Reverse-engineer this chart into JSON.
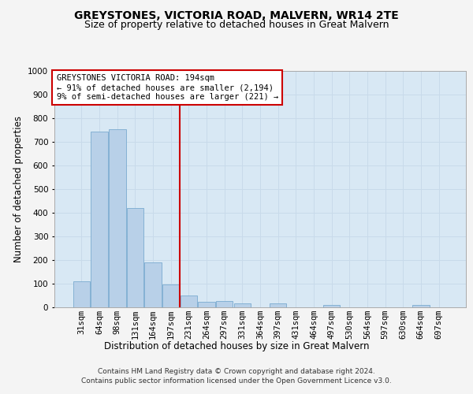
{
  "title": "GREYSTONES, VICTORIA ROAD, MALVERN, WR14 2TE",
  "subtitle": "Size of property relative to detached houses in Great Malvern",
  "xlabel": "Distribution of detached houses by size in Great Malvern",
  "ylabel": "Number of detached properties",
  "categories": [
    "31sqm",
    "64sqm",
    "98sqm",
    "131sqm",
    "164sqm",
    "197sqm",
    "231sqm",
    "264sqm",
    "297sqm",
    "331sqm",
    "364sqm",
    "397sqm",
    "431sqm",
    "464sqm",
    "497sqm",
    "530sqm",
    "564sqm",
    "597sqm",
    "630sqm",
    "664sqm",
    "697sqm"
  ],
  "values": [
    110,
    745,
    755,
    420,
    190,
    97,
    50,
    25,
    27,
    18,
    0,
    18,
    0,
    0,
    10,
    0,
    0,
    0,
    0,
    10,
    0
  ],
  "bar_color": "#b8d0e8",
  "bar_edge_color": "#7aaad0",
  "property_line_x": 5.5,
  "property_label_line1": "GREYSTONES VICTORIA ROAD: 194sqm",
  "property_label_line2": "← 91% of detached houses are smaller (2,194)",
  "property_label_line3": "9% of semi-detached houses are larger (221) →",
  "annotation_box_color": "#ffffff",
  "annotation_box_edge": "#cc0000",
  "vline_color": "#cc0000",
  "ylim": [
    0,
    1000
  ],
  "yticks": [
    0,
    100,
    200,
    300,
    400,
    500,
    600,
    700,
    800,
    900,
    1000
  ],
  "grid_color": "#c8daea",
  "background_color": "#d8e8f4",
  "fig_background": "#f4f4f4",
  "footer_line1": "Contains HM Land Registry data © Crown copyright and database right 2024.",
  "footer_line2": "Contains public sector information licensed under the Open Government Licence v3.0.",
  "title_fontsize": 10,
  "subtitle_fontsize": 9,
  "axis_label_fontsize": 8.5,
  "tick_fontsize": 7.5,
  "annotation_fontsize": 7.5,
  "footer_fontsize": 6.5
}
